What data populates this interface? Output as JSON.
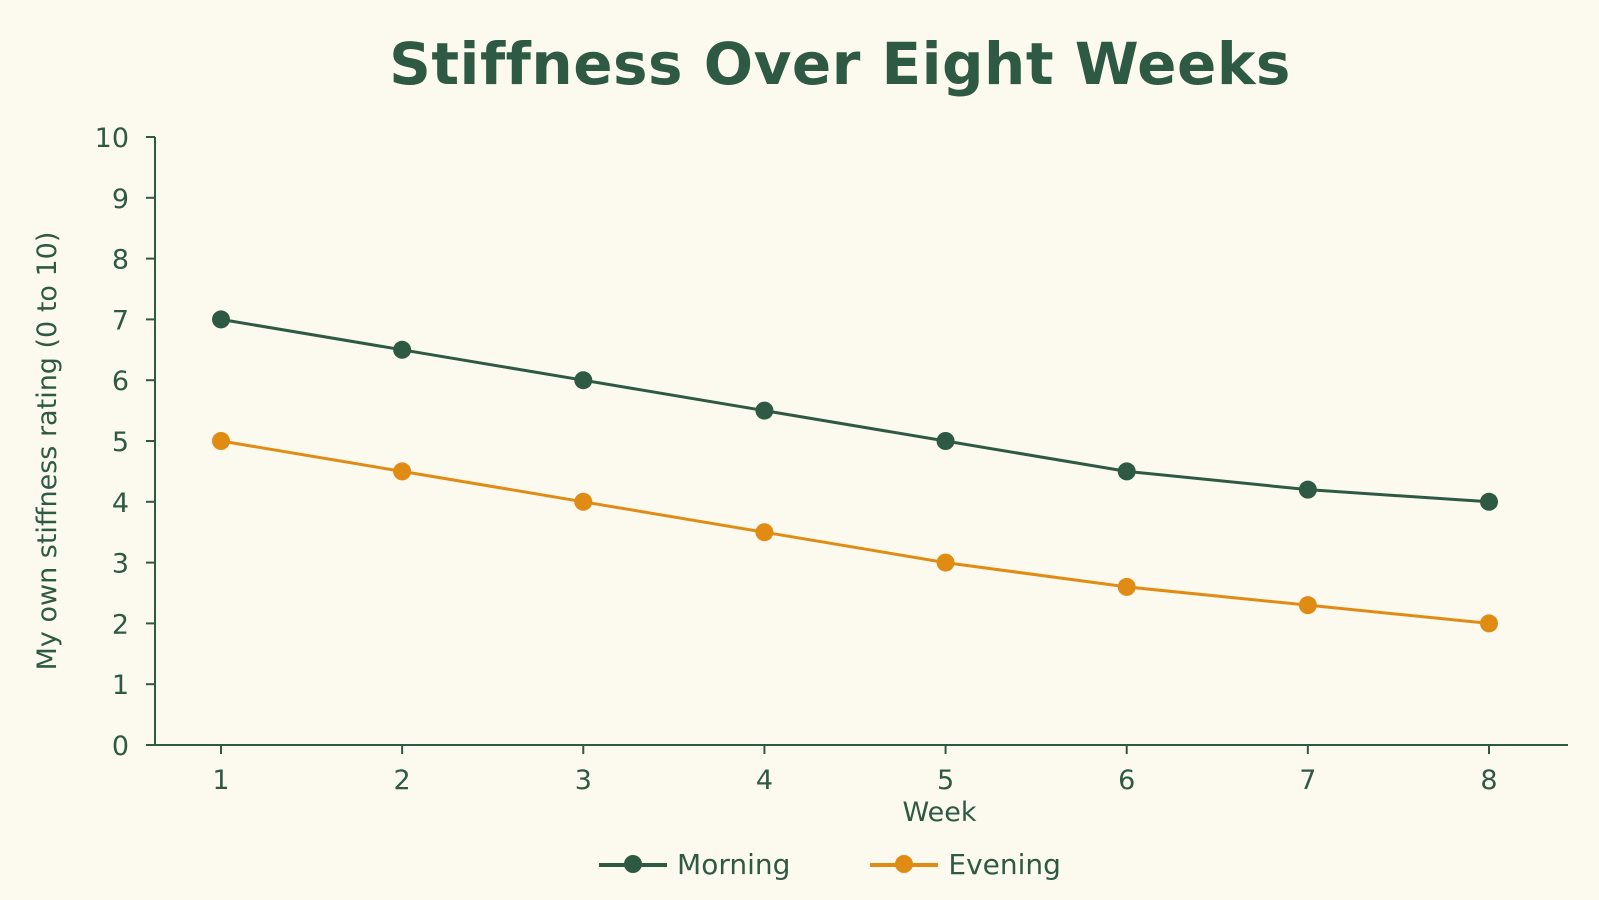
{
  "chart_data": {
    "type": "line",
    "title": "Stiffness Over Eight Weeks",
    "xlabel": "Week",
    "ylabel": "My own stiffness rating (0 to 10)",
    "x": [
      1,
      2,
      3,
      4,
      5,
      6,
      7,
      8
    ],
    "xticks": [
      "1",
      "2",
      "3",
      "4",
      "5",
      "6",
      "7",
      "8"
    ],
    "yticks": [
      "0",
      "1",
      "2",
      "3",
      "4",
      "5",
      "6",
      "7",
      "8",
      "9",
      "10"
    ],
    "ylim": [
      0,
      10
    ],
    "grid": false,
    "legend_position": "bottom",
    "series": [
      {
        "name": "Morning",
        "color": "#2e5a43",
        "values": [
          7,
          6.5,
          6,
          5.5,
          5,
          4.5,
          4.2,
          4
        ]
      },
      {
        "name": "Evening",
        "color": "#e08c14",
        "values": [
          5,
          4.5,
          4,
          3.5,
          3,
          2.6,
          2.3,
          2
        ]
      }
    ]
  }
}
